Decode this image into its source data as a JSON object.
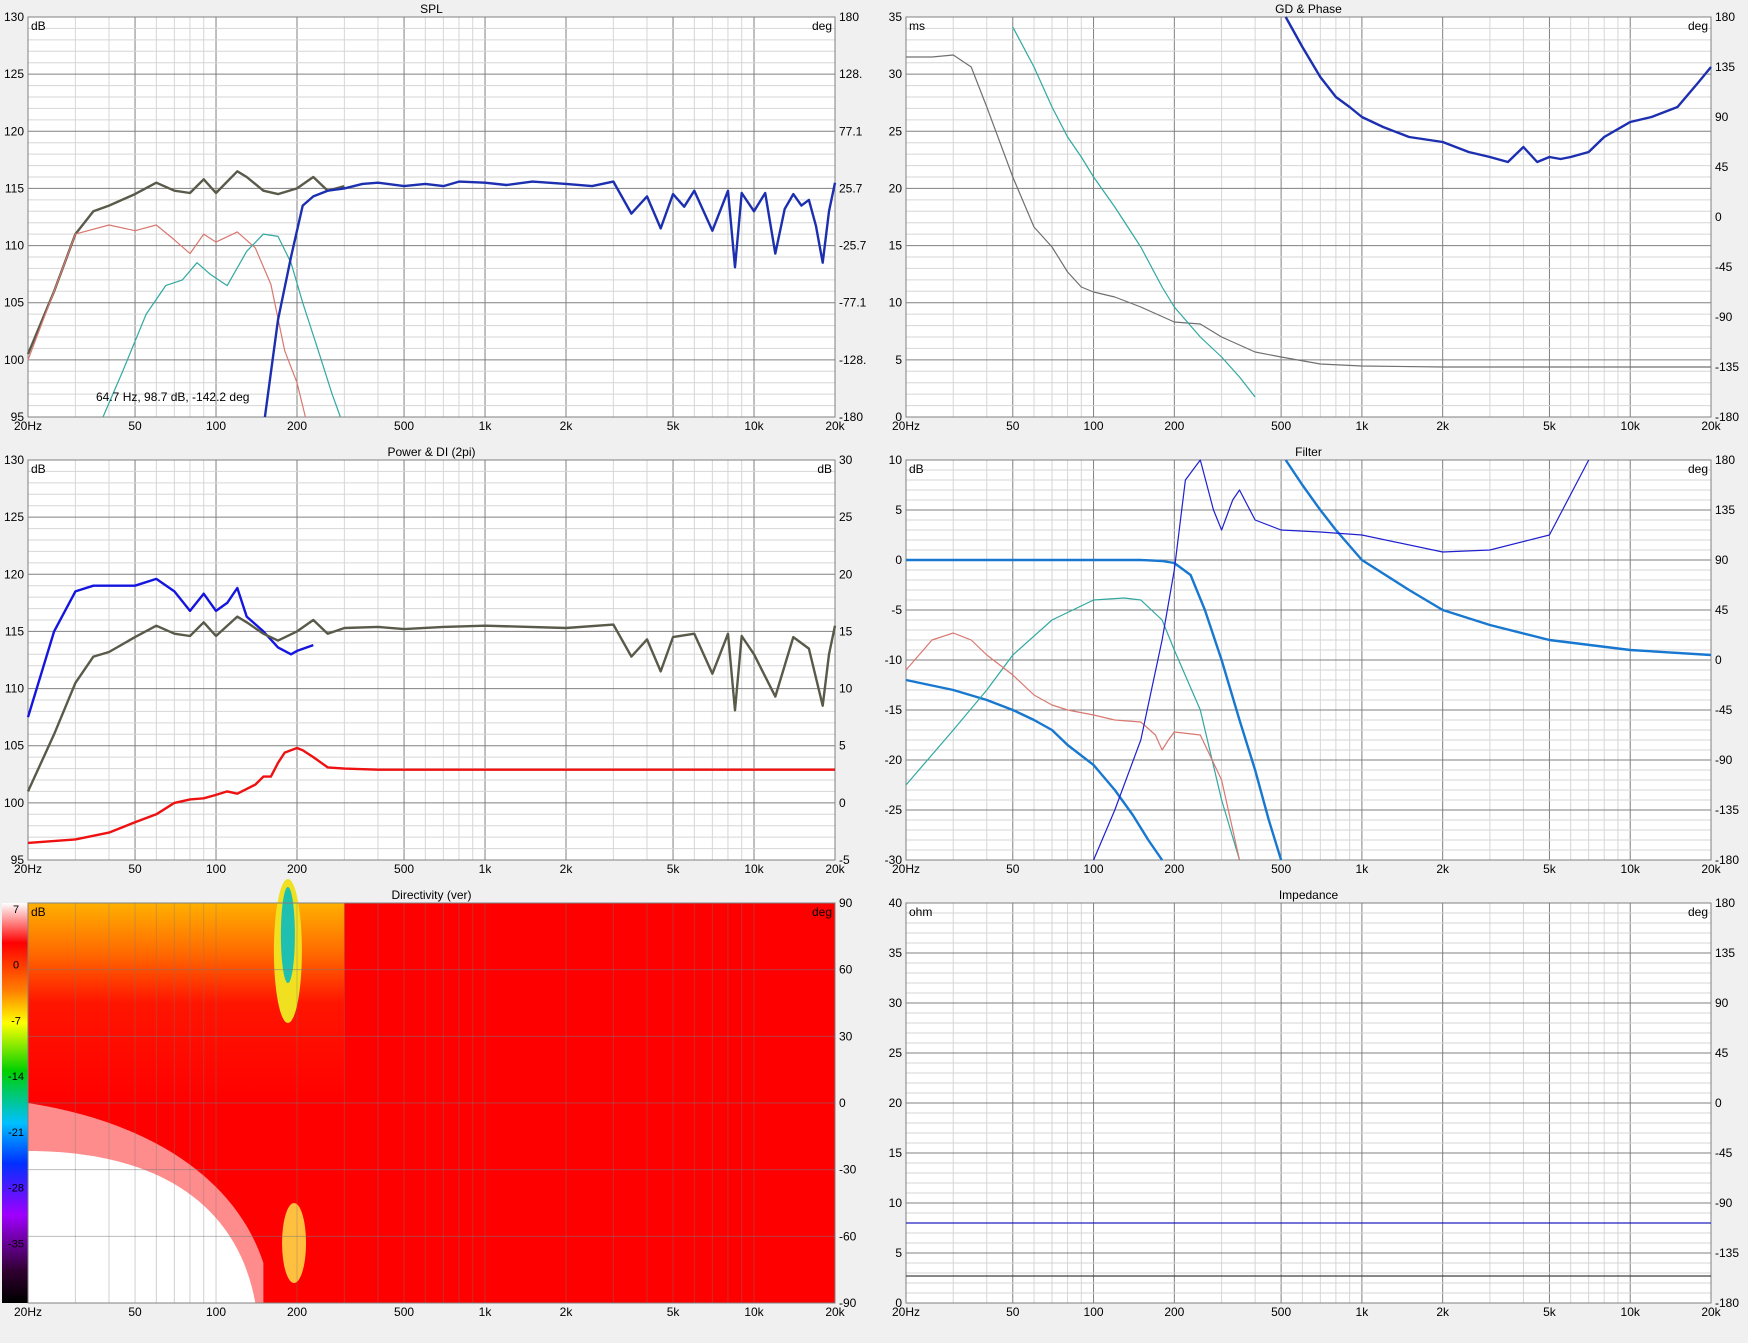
{
  "colors": {
    "grid_minor": "#d6d6d6",
    "grid_major": "#808080",
    "bg": "#ffffff",
    "blue": "#1c2fb0",
    "dark": "#5a5a4a",
    "olive": "#a8b050",
    "redline": "#d87870",
    "teal": "#30a8a0",
    "bright_blue": "#1878d0",
    "red": "#ee1111",
    "power_blue": "#1515e0",
    "gray": "#707070"
  },
  "panels": [
    {
      "id": "spl",
      "title": "SPL",
      "yunit": "dB",
      "y2unit": "deg",
      "ylim": [
        95,
        130
      ],
      "yticks": [
        "130",
        "125",
        "120",
        "115",
        "110",
        "105",
        "100",
        "95"
      ],
      "y2ticks": [
        "180",
        "128.",
        "77.1",
        "25.7",
        "-25.7",
        "-77.1",
        "-128.",
        "-180"
      ],
      "annotation": "64.7 Hz, 98.7 dB, -142.2 deg"
    },
    {
      "id": "gd",
      "title": "GD & Phase",
      "yunit": "ms",
      "y2unit": "deg",
      "ylim": [
        -5,
        35
      ],
      "yticks": [
        "35",
        "30",
        "25",
        "20",
        "15",
        "10",
        "5",
        "0"
      ],
      "y2ticks": [
        "180",
        "135",
        "90",
        "45",
        "0",
        "-45",
        "-90",
        "-135",
        "-180"
      ]
    },
    {
      "id": "power",
      "title": "Power & DI (2pi)",
      "yunit": "dB",
      "y2unit": "dB",
      "ylim": [
        95,
        130
      ],
      "yticks": [
        "130",
        "125",
        "120",
        "115",
        "110",
        "105",
        "100",
        "95"
      ],
      "y2ticks": [
        "30",
        "25",
        "20",
        "15",
        "10",
        "5",
        "0",
        "-5"
      ]
    },
    {
      "id": "filter",
      "title": "Filter",
      "yunit": "dB",
      "y2unit": "deg",
      "ylim": [
        -30,
        10
      ],
      "yticks": [
        "10",
        "5",
        "0",
        "-5",
        "-10",
        "-15",
        "-20",
        "-25",
        "-30"
      ],
      "y2ticks": [
        "180",
        "135",
        "90",
        "45",
        "0",
        "-45",
        "-90",
        "-135",
        "-180"
      ]
    },
    {
      "id": "directivity",
      "title": "Directivity (ver)",
      "yunit": "dB",
      "y2unit": "deg",
      "ylim": [
        -90,
        90
      ],
      "yticks": [],
      "y2ticks": [
        "90",
        "60",
        "30",
        "0",
        "-30",
        "-60",
        "-90"
      ],
      "scale_labels": [
        "7",
        "0",
        "-7",
        "-14",
        "-21",
        "-28",
        "-35",
        "-42"
      ]
    },
    {
      "id": "impedance",
      "title": "Impedance",
      "yunit": "ohm",
      "y2unit": "deg",
      "ylim": [
        0,
        40
      ],
      "yticks": [
        "40",
        "35",
        "30",
        "25",
        "20",
        "15",
        "10",
        "5",
        "0"
      ],
      "y2ticks": [
        "180",
        "135",
        "90",
        "45",
        "0",
        "-45",
        "-90",
        "-135",
        "-180"
      ]
    }
  ],
  "x_tick_labels": [
    "20Hz",
    "50",
    "100",
    "200",
    "500",
    "1k",
    "2k",
    "5k",
    "10k",
    "20k"
  ],
  "chart_data": [
    {
      "type": "line",
      "title": "SPL",
      "xlabel": "",
      "ylabel": "dB",
      "xlim": [
        20,
        20000
      ],
      "xscale": "log",
      "ylim": [
        95,
        130
      ],
      "series": [
        {
          "color": "#5a5a4a",
          "x": [
            20,
            25,
            30,
            35,
            40,
            50,
            60,
            70,
            80,
            90,
            100,
            120,
            130,
            150,
            170,
            200,
            230,
            260,
            300
          ],
          "y": [
            100.5,
            106,
            111,
            113,
            113.5,
            114.5,
            115.5,
            114.8,
            114.6,
            115.8,
            114.6,
            116.5,
            116,
            114.8,
            114.5,
            115,
            116,
            114.8,
            115.2
          ]
        },
        {
          "color": "#d87870",
          "x": [
            20,
            25,
            30,
            40,
            50,
            60,
            70,
            80,
            90,
            100,
            120,
            140,
            160,
            180,
            200,
            215
          ],
          "y": [
            100,
            106,
            111,
            111.8,
            111.3,
            111.8,
            110.5,
            109.3,
            111,
            110.3,
            111.2,
            109.8,
            106.6,
            100.8,
            98,
            95
          ]
        },
        {
          "color": "#30a8a0",
          "x": [
            38,
            45,
            55,
            65,
            75,
            85,
            95,
            110,
            130,
            150,
            170,
            190,
            210,
            240,
            270,
            290
          ],
          "y": [
            95,
            99,
            104,
            106.5,
            107,
            108.5,
            107.5,
            106.5,
            109.5,
            111,
            110.8,
            108.5,
            105,
            100.8,
            97,
            95
          ]
        },
        {
          "color": "#1c2fb0",
          "x": [
            152,
            170,
            190,
            210,
            230,
            260,
            300,
            350,
            400,
            500,
            600,
            700,
            800,
            1000,
            1200,
            1500,
            2000,
            2500,
            3000,
            3500,
            4000,
            4500,
            5000,
            5500,
            6000,
            7000,
            8000,
            8500,
            9000,
            10000,
            11000,
            12000,
            13000,
            14000,
            15000,
            16000,
            17000,
            18000,
            19000,
            20000
          ],
          "y": [
            95,
            103.5,
            109,
            113.5,
            114.3,
            114.8,
            115,
            115.4,
            115.5,
            115.2,
            115.4,
            115.2,
            115.6,
            115.5,
            115.3,
            115.6,
            115.4,
            115.2,
            115.6,
            112.8,
            114.3,
            111.5,
            114.5,
            113.4,
            114.8,
            111.3,
            114.8,
            108.1,
            114.6,
            113,
            114.6,
            109.3,
            113.2,
            114.5,
            113.5,
            114,
            111.7,
            108.5,
            113,
            115.5
          ]
        }
      ]
    },
    {
      "type": "line",
      "title": "GD & Phase",
      "xlabel": "",
      "ylabel": "ms",
      "xlim": [
        20,
        20000
      ],
      "xscale": "log",
      "ylim": [
        -5,
        35
      ],
      "series": [
        {
          "color": "#707070",
          "x": [
            20,
            25,
            30,
            35,
            40,
            50,
            60,
            70,
            80,
            90,
            100,
            120,
            150,
            200,
            250,
            300,
            400,
            500,
            700,
            1000,
            2000,
            5000,
            10000,
            20000
          ],
          "y": [
            31,
            31,
            31.2,
            30,
            26,
            19,
            14,
            12,
            9.5,
            8,
            7.5,
            7,
            6,
            4.5,
            4.3,
            3,
            1.5,
            1,
            0.3,
            0.1,
            0,
            0,
            0,
            0
          ]
        },
        {
          "color": "#1c2fb0",
          "x": [
            520,
            600,
            700,
            800,
            900,
            1000,
            1200,
            1500,
            2000,
            2500,
            3000,
            3500,
            4000,
            4500,
            5000,
            5500,
            6000,
            7000,
            8000,
            10000,
            12000,
            15000,
            18000,
            20000
          ],
          "y": [
            35,
            32,
            29,
            27,
            26,
            25,
            24,
            23,
            22.5,
            21.5,
            21,
            20.5,
            22,
            20.5,
            21,
            20.8,
            21,
            21.5,
            23,
            24.5,
            25,
            26,
            28.5,
            30
          ]
        },
        {
          "color": "#30a8a0",
          "x": [
            50,
            60,
            70,
            80,
            90,
            100,
            120,
            150,
            180,
            200,
            250,
            300,
            350,
            400
          ],
          "y": [
            34,
            30,
            26,
            23,
            21,
            19,
            16,
            12,
            8,
            6,
            3,
            1,
            -1,
            -3
          ]
        }
      ]
    },
    {
      "type": "line",
      "title": "Power & DI (2pi)",
      "xlabel": "",
      "ylabel": "dB",
      "xlim": [
        20,
        20000
      ],
      "xscale": "log",
      "ylim": [
        95,
        130
      ],
      "series": [
        {
          "color": "#1515e0",
          "x": [
            20,
            25,
            30,
            35,
            40,
            50,
            60,
            70,
            80,
            90,
            100,
            110,
            120,
            130,
            150,
            170,
            190,
            200,
            230
          ],
          "y": [
            107.5,
            115,
            118.5,
            119,
            119,
            119,
            119.6,
            118.5,
            116.8,
            118.3,
            116.8,
            117.5,
            118.8,
            116.3,
            115,
            113.6,
            113,
            113.3,
            113.8
          ]
        },
        {
          "color": "#5a5a4a",
          "x": [
            20,
            25,
            30,
            35,
            40,
            50,
            60,
            70,
            80,
            90,
            100,
            120,
            130,
            150,
            170,
            200,
            230,
            260,
            300,
            400,
            500,
            700,
            1000,
            2000,
            3000,
            3500,
            4000,
            4500,
            5000,
            6000,
            7000,
            8000,
            8500,
            9000,
            10000,
            12000,
            14000,
            16000,
            18000,
            19000,
            20000
          ],
          "y": [
            101,
            106,
            110.5,
            112.8,
            113.2,
            114.5,
            115.5,
            114.8,
            114.6,
            115.8,
            114.6,
            116.3,
            115.8,
            114.8,
            114.2,
            115,
            116,
            114.8,
            115.3,
            115.4,
            115.2,
            115.4,
            115.5,
            115.3,
            115.6,
            112.8,
            114.3,
            111.5,
            114.5,
            114.8,
            111.3,
            114.8,
            108.1,
            114.6,
            113,
            109.3,
            114.5,
            113.5,
            108.5,
            113,
            115.5
          ]
        },
        {
          "color": "#ee1111",
          "x": [
            20,
            30,
            40,
            50,
            60,
            70,
            80,
            90,
            100,
            110,
            120,
            140,
            150,
            160,
            170,
            180,
            190,
            200,
            210,
            230,
            260,
            300,
            400,
            500,
            1000,
            5000,
            20000
          ],
          "y": [
            96.5,
            96.8,
            97.4,
            98.3,
            99,
            100,
            100.3,
            100.4,
            100.7,
            101,
            100.8,
            101.6,
            102.3,
            102.3,
            103.5,
            104.4,
            104.6,
            104.8,
            104.6,
            104,
            103.1,
            103,
            102.9,
            102.9,
            102.9,
            102.9,
            102.9
          ]
        }
      ]
    },
    {
      "type": "line",
      "title": "Filter",
      "xlabel": "",
      "ylabel": "dB",
      "xlim": [
        20,
        20000
      ],
      "xscale": "log",
      "ylim": [
        -30,
        10
      ],
      "series": [
        {
          "color": "#1878d0",
          "x": [
            20,
            50,
            100,
            150,
            180,
            200,
            230,
            260,
            300,
            350,
            400,
            450,
            500
          ],
          "y": [
            0,
            0,
            0,
            0,
            -0.1,
            -0.3,
            -1.5,
            -5,
            -10,
            -16,
            -21,
            -26,
            -30
          ]
        },
        {
          "color": "#1878d0",
          "x": [
            20,
            30,
            40,
            50,
            60,
            70,
            80,
            100,
            120,
            140,
            160,
            180
          ],
          "y": [
            -12,
            -13,
            -14,
            -15,
            -16,
            -17,
            -18.5,
            -20.5,
            -23,
            -25.5,
            -28,
            -30
          ]
        },
        {
          "color": "#1878d0",
          "x": [
            520,
            600,
            700,
            800,
            1000,
            1500,
            2000,
            3000,
            5000,
            10000,
            20000
          ],
          "y": [
            10,
            7.5,
            5,
            3,
            0,
            -3,
            -5,
            -6.5,
            -8,
            -9,
            -9.5
          ]
        },
        {
          "color": "#30a8a0",
          "x": [
            20,
            30,
            40,
            50,
            70,
            100,
            130,
            150,
            180,
            200,
            250,
            300,
            350
          ],
          "y": [
            -22.5,
            -17,
            -13,
            -9.5,
            -6,
            -4,
            -3.8,
            -4,
            -6,
            -9,
            -15,
            -24,
            -30
          ]
        },
        {
          "color": "#d87870",
          "x": [
            20,
            25,
            30,
            35,
            40,
            50,
            60,
            70,
            80,
            100,
            120,
            150,
            170,
            180,
            190,
            200,
            250,
            300,
            350
          ],
          "y": [
            -11,
            -8,
            -7.3,
            -8,
            -9.5,
            -11.5,
            -13.5,
            -14.5,
            -15,
            -15.5,
            -16,
            -16.2,
            -17.5,
            -19,
            -18,
            -17.2,
            -17.5,
            -22,
            -30
          ]
        },
        {
          "color": "#2020d0",
          "x": [
            100,
            120,
            150,
            180,
            200,
            220,
            250,
            280,
            300,
            330,
            350,
            400,
            500,
            700,
            1000,
            2000,
            3000,
            5000,
            7000
          ],
          "y": [
            -30,
            -25,
            -18,
            -8,
            -1,
            8,
            11,
            5,
            3,
            6,
            7,
            4,
            3,
            2.8,
            2.5,
            0.8,
            1,
            2.5,
            10
          ]
        }
      ]
    },
    {
      "type": "heatmap",
      "title": "Directivity (ver)",
      "xlabel": "",
      "ylabel": "deg",
      "xlim": [
        20,
        20000
      ],
      "xscale": "log",
      "ylim": [
        -90,
        90
      ],
      "colorbar_range": [
        -42,
        7
      ]
    },
    {
      "type": "line",
      "title": "Impedance",
      "xlabel": "",
      "ylabel": "ohm",
      "xlim": [
        20,
        20000
      ],
      "xscale": "log",
      "ylim": [
        0,
        40
      ],
      "series": [
        {
          "color": "#2020c0",
          "x": [
            20,
            20000
          ],
          "y": [
            8,
            8
          ]
        },
        {
          "color": "#404040",
          "x": [
            20,
            20000
          ],
          "y": [
            2.7,
            2.7
          ]
        }
      ]
    }
  ]
}
